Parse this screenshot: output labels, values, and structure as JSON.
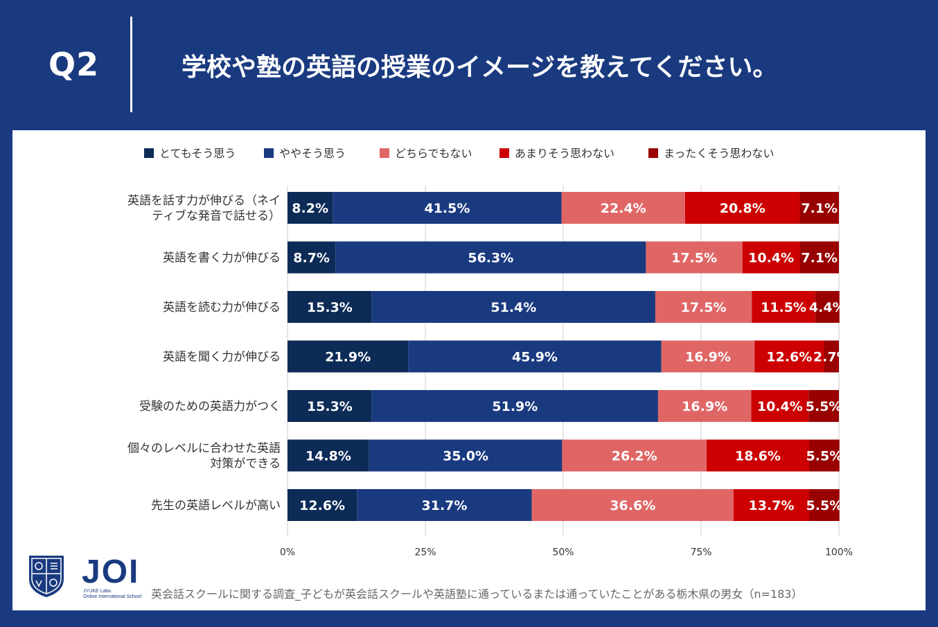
{
  "header": {
    "q_label": "Q2",
    "question": "学校や塾の英語の授業のイメージを教えてください。"
  },
  "colors": {
    "background": "#1a3a80",
    "series": [
      "#0d2b57",
      "#1a3a80",
      "#e06666",
      "#cc0000",
      "#990000"
    ]
  },
  "chart_data": {
    "type": "bar",
    "orientation": "horizontal",
    "stacked": true,
    "categories": [
      [
        "英語を話す力が伸びる（ネイ",
        "ティブな発音で話せる）"
      ],
      [
        "英語を書く力が伸びる"
      ],
      [
        "英語を読む力が伸びる"
      ],
      [
        "英語を聞く力が伸びる"
      ],
      [
        "受験のための英語力がつく"
      ],
      [
        "個々のレベルに合わせた英語",
        "対策ができる"
      ],
      [
        "先生の英語レベルが高い"
      ]
    ],
    "series": [
      {
        "name": "とてもそう思う",
        "values": [
          8.2,
          8.7,
          15.3,
          21.9,
          15.3,
          14.8,
          12.6
        ]
      },
      {
        "name": "ややそう思う",
        "values": [
          41.5,
          56.3,
          51.4,
          45.9,
          51.9,
          35.0,
          31.7
        ]
      },
      {
        "name": "どちらでもない",
        "values": [
          22.4,
          17.5,
          17.5,
          16.9,
          16.9,
          26.2,
          36.6
        ]
      },
      {
        "name": "あまりそう思わない",
        "values": [
          20.8,
          10.4,
          11.5,
          12.6,
          10.4,
          18.6,
          13.7
        ]
      },
      {
        "name": "まったくそう思わない",
        "values": [
          7.1,
          7.1,
          4.4,
          2.7,
          5.5,
          5.5,
          5.5
        ]
      }
    ],
    "x_ticks": [
      "0%",
      "25%",
      "50%",
      "75%",
      "100%"
    ],
    "xlim": [
      0,
      100
    ],
    "legend_position": "top",
    "grid": true
  },
  "logo": {
    "text": "JOI",
    "sub1": "JYUKE Labo.",
    "sub2": "Online International School"
  },
  "footnote": "英会話スクールに関する調査_子どもが英会話スクールや英語塾に通っているまたは通っていたことがある栃木県の男女（n=183）"
}
